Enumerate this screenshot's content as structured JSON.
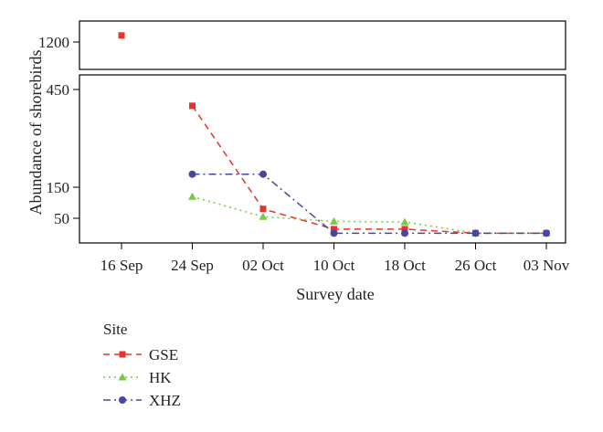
{
  "chart_data": {
    "type": "line",
    "ylabel": "Abundance of shorebirds",
    "xlabel": "Survey date",
    "categories": [
      "16 Sep",
      "24 Sep",
      "02 Oct",
      "10 Oct",
      "18 Oct",
      "26 Oct",
      "03 Nov"
    ],
    "y_ticks_lower": [
      "50",
      "150",
      "450"
    ],
    "y_ticks_upper": [
      "1200"
    ],
    "broken_axis": true,
    "legend": {
      "title": "Site",
      "placement": "bottom-left"
    },
    "series": [
      {
        "name": "GSE",
        "color": "#e8322a",
        "marker": "square",
        "line": "dashed",
        "values": [
          1230,
          400,
          80,
          15,
          15,
          2,
          2
        ]
      },
      {
        "name": "HK",
        "color": "#7ac943",
        "marker": "triangle",
        "line": "dotted",
        "values": [
          null,
          120,
          55,
          40,
          38,
          2,
          2
        ]
      },
      {
        "name": "XHZ",
        "color": "#4548a0",
        "marker": "circle",
        "line": "dashdot",
        "values": [
          null,
          190,
          190,
          2,
          2,
          2,
          2
        ]
      }
    ]
  }
}
